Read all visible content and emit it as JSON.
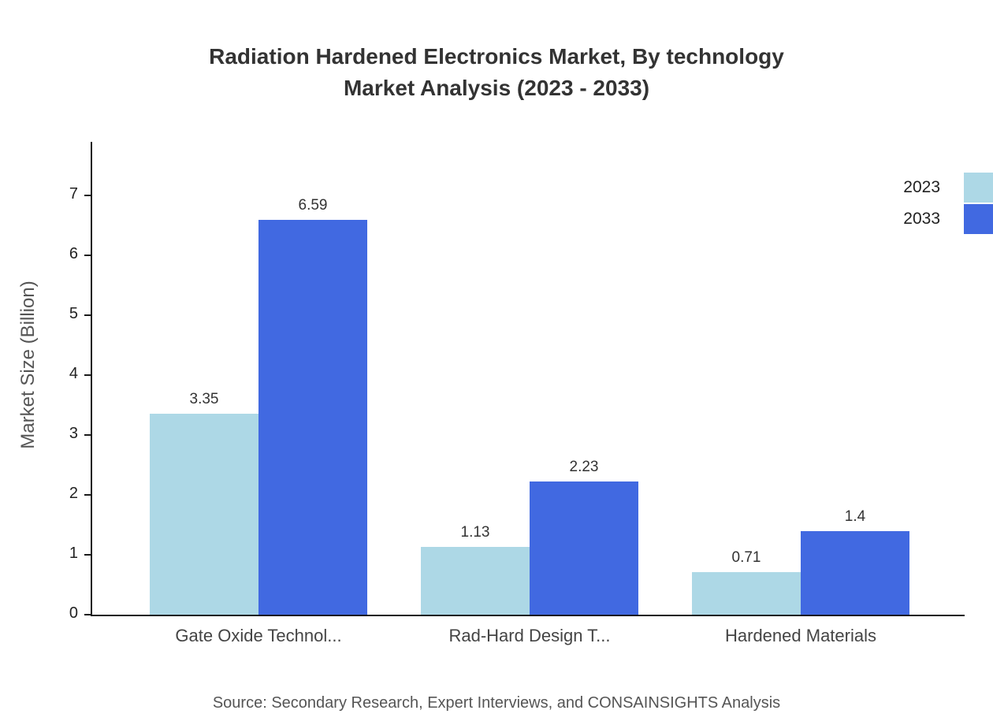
{
  "title": {
    "line1": "Radiation Hardened Electronics Market, By technology",
    "line2": "Market Analysis (2023 - 2033)"
  },
  "legend": [
    {
      "label": "2023",
      "color": "#add8e6"
    },
    {
      "label": "2033",
      "color": "#4169e1"
    }
  ],
  "source": "Source: Secondary Research, Expert Interviews, and CONSAINSIGHTS Analysis",
  "chart_data": {
    "type": "bar",
    "categories": [
      "Gate Oxide Technol...",
      "Rad-Hard Design T...",
      "Hardened Materials"
    ],
    "series": [
      {
        "name": "2023",
        "color": "#add8e6",
        "values": [
          3.35,
          1.13,
          0.71
        ]
      },
      {
        "name": "2033",
        "color": "#4169e1",
        "values": [
          6.59,
          2.23,
          1.4
        ]
      }
    ],
    "ylabel": "Market Size (Billion)",
    "ylim": [
      0,
      7.9
    ],
    "yticks": [
      0,
      1,
      2,
      3,
      4,
      5,
      6,
      7
    ],
    "grid": false,
    "legend_position": "top-right"
  }
}
